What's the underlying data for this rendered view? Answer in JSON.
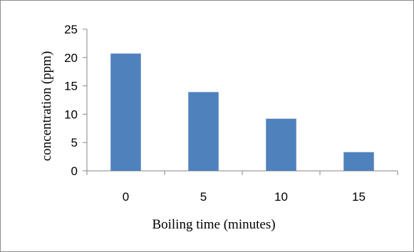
{
  "chart_data": {
    "type": "bar",
    "categories": [
      "0",
      "5",
      "10",
      "15"
    ],
    "values": [
      20.7,
      13.9,
      9.2,
      3.3
    ],
    "xlabel": "Boiling time (minutes)",
    "ylabel": "concentration (ppm)",
    "ylim": [
      0,
      25
    ],
    "yticks": [
      "0",
      "5",
      "10",
      "15",
      "20",
      "25"
    ],
    "grid": false,
    "legend": "none",
    "bar_color": "#4f81bd",
    "axis_color": "#868686"
  }
}
